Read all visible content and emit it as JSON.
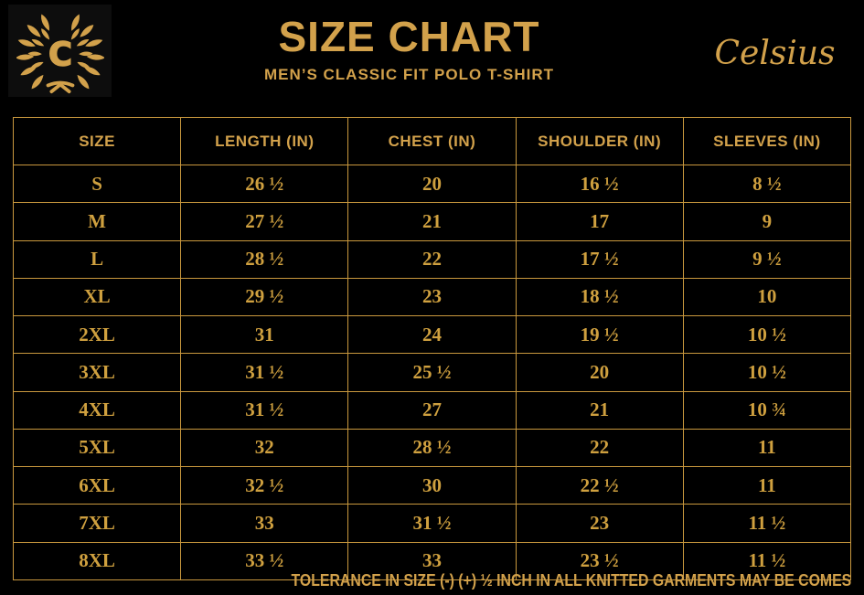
{
  "colors": {
    "background": "#000000",
    "gold": "#D2A14B",
    "gold_values": "#CFA03F",
    "table_border": "#C9983E",
    "logo_background": "#0D0D0D"
  },
  "header": {
    "title": "SIZE CHART",
    "subtitle": "MEN’S CLASSIC FIT POLO T-SHIRT",
    "brand": "Celsius",
    "logo_letter": "C"
  },
  "table": {
    "columns": [
      "SIZE",
      "LENGTH (IN)",
      "CHEST (IN)",
      "SHOULDER (IN)",
      "SLEEVES (IN)"
    ],
    "rows": [
      [
        "S",
        "26 ½",
        "20",
        "16 ½",
        "8 ½"
      ],
      [
        "M",
        "27 ½",
        "21",
        "17",
        "9"
      ],
      [
        "L",
        "28 ½",
        "22",
        "17 ½",
        "9 ½"
      ],
      [
        "XL",
        "29 ½",
        "23",
        "18 ½",
        "10"
      ],
      [
        "2XL",
        "31",
        "24",
        "19 ½",
        "10 ½"
      ],
      [
        "3XL",
        "31 ½",
        "25 ½",
        "20",
        "10 ½"
      ],
      [
        "4XL",
        "31 ½",
        "27",
        "21",
        "10 ¾"
      ],
      [
        "5XL",
        "32",
        "28 ½",
        "22",
        "11"
      ],
      [
        "6XL",
        "32 ½",
        "30",
        "22 ½",
        "11"
      ],
      [
        "7XL",
        "33",
        "31 ½",
        "23",
        "11 ½"
      ],
      [
        "8XL",
        "33 ½",
        "33",
        "23 ½",
        "11 ½"
      ]
    ]
  },
  "footer": {
    "note": "TOLERANCE IN SIZE (-) (+)  ½ INCH IN ALL KNITTED GARMENTS MAY BE COMES"
  }
}
